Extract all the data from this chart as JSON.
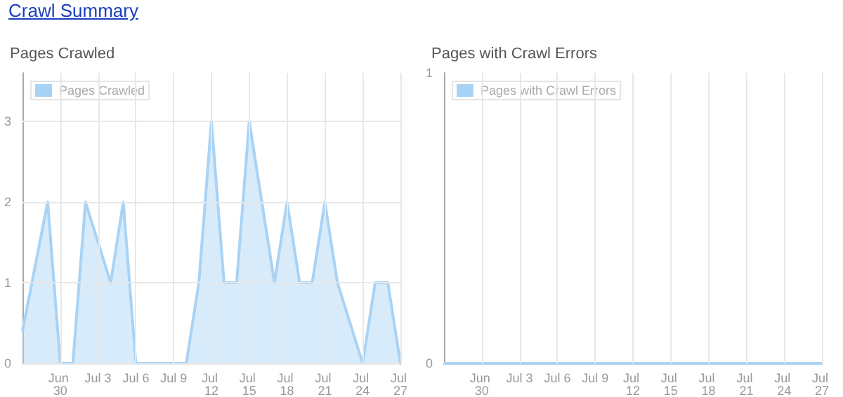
{
  "chart_data": [
    {
      "type": "area",
      "title": "Pages Crawled",
      "annotations": [
        "Crawl Summary"
      ],
      "x": [
        "--06-27",
        "--06-29",
        "--06-30",
        "--07-01",
        "--07-02",
        "--07-04",
        "--07-05",
        "--07-06",
        "--07-10",
        "--07-11",
        "--07-12",
        "--07-13",
        "--07-14",
        "--07-15",
        "--07-17",
        "--07-18",
        "--07-19",
        "--07-20",
        "--07-21",
        "--07-22",
        "--07-24",
        "--07-25",
        "--07-26",
        "--07-27"
      ],
      "series": [
        {
          "name": "Pages Crawled",
          "color": "#a9d3f5",
          "values": [
            0.4,
            2,
            0,
            0,
            2,
            1,
            2,
            0,
            0,
            1,
            3,
            1,
            1,
            3,
            1,
            2,
            1,
            1,
            2,
            1,
            0,
            1,
            1,
            0
          ]
        }
      ],
      "xlim": [
        "--06-27",
        "--07-27"
      ],
      "xticks": [
        {
          "value": "--06-30",
          "label": "Jun 30"
        },
        {
          "value": "--07-03",
          "label": "Jul 3"
        },
        {
          "value": "--07-06",
          "label": "Jul 6"
        },
        {
          "value": "--07-09",
          "label": "Jul 9"
        },
        {
          "value": "--07-12",
          "label": "Jul 12"
        },
        {
          "value": "--07-15",
          "label": "Jul 15"
        },
        {
          "value": "--07-18",
          "label": "Jul 18"
        },
        {
          "value": "--07-21",
          "label": "Jul 21"
        },
        {
          "value": "--07-24",
          "label": "Jul 24"
        },
        {
          "value": "--07-27",
          "label": "Jul 27"
        }
      ],
      "ylim": [
        0,
        3.6
      ],
      "yticks": [
        0,
        1,
        2,
        3
      ],
      "grid": true,
      "legend": "top left"
    },
    {
      "type": "line",
      "title": "Pages with Crawl Errors",
      "x": [
        "--06-27",
        "--07-27"
      ],
      "series": [
        {
          "name": "Pages with Crawl Errors",
          "color": "#a9d3f5",
          "values": [
            0,
            0
          ]
        }
      ],
      "xlim": [
        "--06-27",
        "--07-27"
      ],
      "xticks": [
        {
          "value": "--06-30",
          "label": "Jun 30"
        },
        {
          "value": "--07-03",
          "label": "Jul 3"
        },
        {
          "value": "--07-06",
          "label": "Jul 6"
        },
        {
          "value": "--07-09",
          "label": "Jul 9"
        },
        {
          "value": "--07-12",
          "label": "Jul 12"
        },
        {
          "value": "--07-15",
          "label": "Jul 15"
        },
        {
          "value": "--07-18",
          "label": "Jul 18"
        },
        {
          "value": "--07-21",
          "label": "Jul 21"
        },
        {
          "value": "--07-24",
          "label": "Jul 24"
        },
        {
          "value": "--07-27",
          "label": "Jul 27"
        }
      ],
      "ylim": [
        0,
        1
      ],
      "yticks": [
        0,
        1
      ],
      "grid": "x",
      "legend": "top left"
    }
  ]
}
